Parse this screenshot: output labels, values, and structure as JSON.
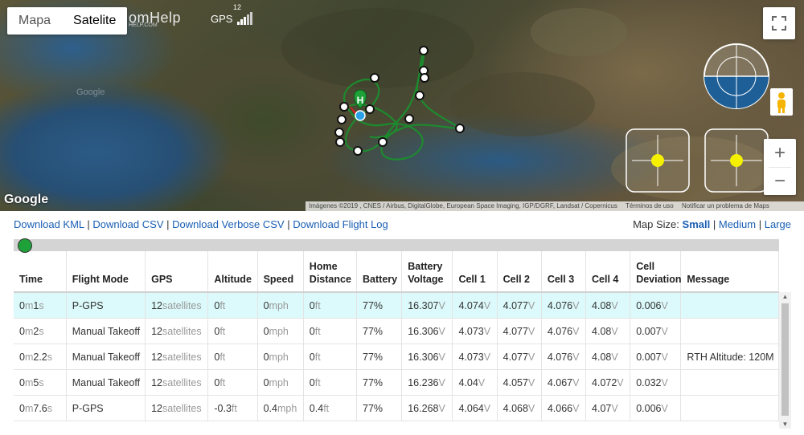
{
  "map": {
    "type_tabs": [
      "Mapa",
      "Satelite"
    ],
    "active_tab": "Satelite",
    "logo_text": "omHelp",
    "logo_sub": "HELP.COM",
    "gps_label": "GPS",
    "gps_count": "12",
    "google_label": "Google",
    "watermark": "Google",
    "attribution": [
      "Imágenes ©2019 , CNES / Airbus, DigitalGlobe, European Space Imaging, IGP/DGRF, Landsat / Copernicus",
      "Términos de uso",
      "Notificar un problema de Maps"
    ],
    "home_marker_label": "H",
    "zoom_in": "+",
    "zoom_out": "−",
    "colors": {
      "flight_path": "#1d8a2e",
      "stick_dot": "#f5f000",
      "horizon_water": "#1e5f97"
    }
  },
  "links": {
    "kml": "Download KML",
    "csv": "Download CSV",
    "verbose_csv": "Download Verbose CSV",
    "flight_log": "Download Flight Log",
    "sep": "|"
  },
  "map_size": {
    "label": "Map Size:",
    "small": "Small",
    "medium": "Medium",
    "large": "Large",
    "sep": "|"
  },
  "table": {
    "headers": [
      "Time",
      "Flight Mode",
      "GPS",
      "Altitude",
      "Speed",
      "Home Distance",
      "Battery",
      "Battery Voltage",
      "Cell 1",
      "Cell 2",
      "Cell 3",
      "Cell 4",
      "Cell Deviation",
      "Message"
    ],
    "rows": [
      [
        "0",
        "m",
        "1",
        "s",
        "P-GPS",
        "12",
        "satellites",
        "0",
        "ft",
        "0",
        "mph",
        "0",
        "ft",
        "77%",
        "16.307",
        "V",
        "4.074",
        "V",
        "4.077",
        "V",
        "4.076",
        "V",
        "4.08",
        "V",
        "0.006",
        "V",
        ""
      ],
      [
        "0",
        "m",
        "2",
        "s",
        "Manual Takeoff",
        "12",
        "satellites",
        "0",
        "ft",
        "0",
        "mph",
        "0",
        "ft",
        "77%",
        "16.306",
        "V",
        "4.073",
        "V",
        "4.077",
        "V",
        "4.076",
        "V",
        "4.08",
        "V",
        "0.007",
        "V",
        ""
      ],
      [
        "0",
        "m",
        "2.2",
        "s",
        "Manual Takeoff",
        "12",
        "satellites",
        "0",
        "ft",
        "0",
        "mph",
        "0",
        "ft",
        "77%",
        "16.306",
        "V",
        "4.073",
        "V",
        "4.077",
        "V",
        "4.076",
        "V",
        "4.08",
        "V",
        "0.007",
        "V",
        "RTH Altitude: 120M"
      ],
      [
        "0",
        "m",
        "5",
        "s",
        "Manual Takeoff",
        "12",
        "satellites",
        "0",
        "ft",
        "0",
        "mph",
        "0",
        "ft",
        "77%",
        "16.236",
        "V",
        "4.04",
        "V",
        "4.057",
        "V",
        "4.067",
        "V",
        "4.072",
        "V",
        "0.032",
        "V",
        ""
      ],
      [
        "0",
        "m",
        "7.6",
        "s",
        "P-GPS",
        "12",
        "satellites",
        "-0.3",
        "ft",
        "0.4",
        "mph",
        "0.4",
        "ft",
        "77%",
        "16.268",
        "V",
        "4.064",
        "V",
        "4.068",
        "V",
        "4.066",
        "V",
        "4.07",
        "V",
        "0.006",
        "V",
        ""
      ]
    ]
  },
  "scrollbar": {
    "up": "▲",
    "down": "▼"
  }
}
